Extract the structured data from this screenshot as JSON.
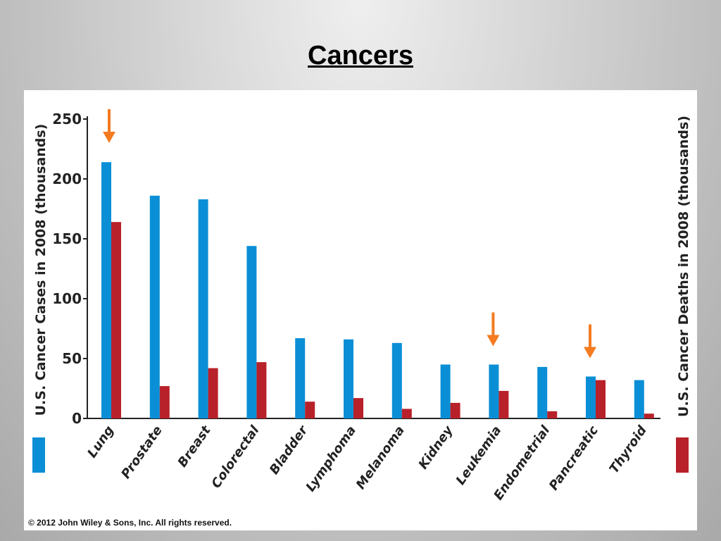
{
  "slide": {
    "title": "Cancers",
    "copyright": "© 2012 John Wiley & Sons, Inc. All rights reserved."
  },
  "colors": {
    "cases": "#0a8fd6",
    "deaths": "#b8212a",
    "arrow": "#f47b20"
  },
  "chart_data": {
    "type": "bar",
    "title": "",
    "ylabel": "U.S. Cancer Cases in 2008 (thousands)",
    "ylabel_right": "U.S. Cancer Deaths in 2008 (thousands)",
    "ylim": [
      0,
      250
    ],
    "yticks": [
      "250",
      "200",
      "150",
      "100",
      "50",
      "0"
    ],
    "ytick_values": [
      250,
      200,
      150,
      100,
      50,
      0
    ],
    "grid": false,
    "legend": "color swatches below each y-axis label",
    "categories": [
      "Lung",
      "Prostate",
      "Breast",
      "Colorectal",
      "Bladder",
      "Lymphoma",
      "Melanoma",
      "Kidney",
      "Leukemia",
      "Endometrial",
      "Pancreatic",
      "Thyroid"
    ],
    "series": [
      {
        "key": "cases",
        "values": [
          214,
          186,
          183,
          144,
          67,
          66,
          63,
          45,
          45,
          43,
          35,
          32
        ]
      },
      {
        "key": "deaths",
        "values": [
          164,
          27,
          42,
          47,
          14,
          17,
          8,
          13,
          23,
          6,
          32,
          4
        ]
      }
    ],
    "highlighted_categories": [
      "Lung",
      "Leukemia",
      "Pancreatic"
    ]
  }
}
